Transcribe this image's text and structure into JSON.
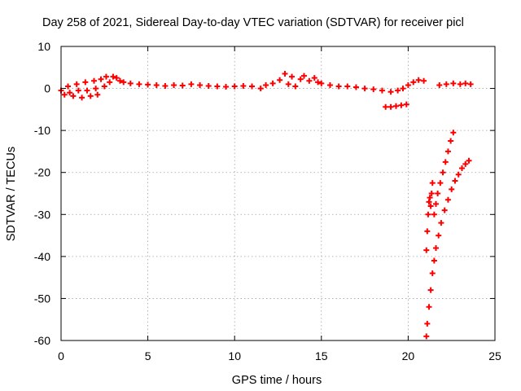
{
  "chart_data": {
    "type": "scatter",
    "title": "Day 258 of 2021, Sidereal Day-to-day VTEC variation (SDTVAR) for receiver picl",
    "xlabel": "GPS time / hours",
    "ylabel": "SDTVAR / TECUs",
    "xlim": [
      0,
      25
    ],
    "ylim": [
      -60,
      10
    ],
    "xticks": [
      0,
      5,
      10,
      15,
      20,
      25
    ],
    "yticks": [
      -60,
      -50,
      -40,
      -30,
      -20,
      -10,
      0,
      10
    ],
    "grid": true,
    "legend": "none",
    "marker": "plus",
    "color": "#ff0000",
    "series": [
      {
        "values": [
          [
            0.0,
            -0.5
          ],
          [
            0.2,
            -1.5
          ],
          [
            0.4,
            0.5
          ],
          [
            0.5,
            -1.0
          ],
          [
            0.7,
            -1.8
          ],
          [
            0.9,
            1.0
          ],
          [
            1.0,
            -0.5
          ],
          [
            1.2,
            -2.2
          ],
          [
            1.4,
            1.5
          ],
          [
            1.5,
            -0.5
          ],
          [
            1.7,
            -1.8
          ],
          [
            1.9,
            1.8
          ],
          [
            2.0,
            0.0
          ],
          [
            2.1,
            -1.5
          ],
          [
            2.3,
            2.2
          ],
          [
            2.5,
            0.5
          ],
          [
            2.6,
            2.8
          ],
          [
            2.8,
            1.5
          ],
          [
            3.0,
            2.8
          ],
          [
            3.2,
            2.5
          ],
          [
            3.4,
            1.8
          ],
          [
            3.6,
            1.5
          ],
          [
            4.0,
            1.2
          ],
          [
            4.5,
            1.0
          ],
          [
            5.0,
            0.9
          ],
          [
            5.5,
            0.8
          ],
          [
            6.0,
            0.6
          ],
          [
            6.5,
            0.8
          ],
          [
            7.0,
            0.7
          ],
          [
            7.5,
            1.0
          ],
          [
            8.0,
            0.8
          ],
          [
            8.5,
            0.6
          ],
          [
            9.0,
            0.5
          ],
          [
            9.5,
            0.4
          ],
          [
            10.0,
            0.5
          ],
          [
            10.5,
            0.6
          ],
          [
            11.0,
            0.5
          ],
          [
            11.5,
            0.0
          ],
          [
            11.8,
            0.8
          ],
          [
            12.2,
            1.2
          ],
          [
            12.6,
            2.0
          ],
          [
            12.9,
            3.5
          ],
          [
            13.1,
            1.0
          ],
          [
            13.3,
            2.8
          ],
          [
            13.5,
            0.5
          ],
          [
            13.8,
            2.2
          ],
          [
            14.0,
            3.0
          ],
          [
            14.3,
            1.8
          ],
          [
            14.6,
            2.5
          ],
          [
            14.8,
            1.5
          ],
          [
            15.0,
            1.2
          ],
          [
            15.5,
            0.8
          ],
          [
            16.0,
            0.5
          ],
          [
            16.5,
            0.5
          ],
          [
            17.0,
            0.3
          ],
          [
            17.5,
            0.0
          ],
          [
            18.0,
            -0.2
          ],
          [
            18.5,
            -0.5
          ],
          [
            19.0,
            -0.8
          ],
          [
            19.4,
            -0.5
          ],
          [
            19.7,
            0.0
          ],
          [
            20.0,
            0.8
          ],
          [
            20.3,
            1.5
          ],
          [
            20.6,
            2.0
          ],
          [
            20.9,
            1.8
          ],
          [
            18.7,
            -4.4
          ],
          [
            19.0,
            -4.4
          ],
          [
            19.3,
            -4.2
          ],
          [
            19.6,
            -4.0
          ],
          [
            19.9,
            -3.8
          ],
          [
            21.8,
            0.8
          ],
          [
            22.2,
            1.0
          ],
          [
            22.6,
            1.2
          ],
          [
            23.0,
            1.0
          ],
          [
            23.3,
            1.2
          ],
          [
            23.6,
            1.0
          ],
          [
            21.05,
            -38.5
          ],
          [
            21.1,
            -34.0
          ],
          [
            21.15,
            -30.0
          ],
          [
            21.2,
            -27.0
          ],
          [
            21.25,
            -26.0
          ],
          [
            21.3,
            -28.0
          ],
          [
            21.35,
            -25.0
          ],
          [
            21.4,
            -22.5
          ],
          [
            21.5,
            -30.0
          ],
          [
            21.6,
            -27.5
          ],
          [
            21.7,
            -25.0
          ],
          [
            21.85,
            -22.5
          ],
          [
            22.0,
            -20.0
          ],
          [
            22.15,
            -17.5
          ],
          [
            22.3,
            -15.0
          ],
          [
            22.45,
            -12.5
          ],
          [
            22.6,
            -10.5
          ],
          [
            21.05,
            -59.0
          ],
          [
            21.1,
            -56.0
          ],
          [
            21.2,
            -52.0
          ],
          [
            21.3,
            -48.0
          ],
          [
            21.4,
            -44.0
          ],
          [
            21.5,
            -41.0
          ],
          [
            21.6,
            -38.0
          ],
          [
            21.75,
            -35.0
          ],
          [
            21.9,
            -32.0
          ],
          [
            22.1,
            -29.0
          ],
          [
            22.3,
            -26.5
          ],
          [
            22.5,
            -24.0
          ],
          [
            22.7,
            -22.0
          ],
          [
            22.9,
            -20.5
          ],
          [
            23.1,
            -19.0
          ],
          [
            23.3,
            -18.0
          ],
          [
            23.5,
            -17.2
          ]
        ]
      }
    ]
  }
}
